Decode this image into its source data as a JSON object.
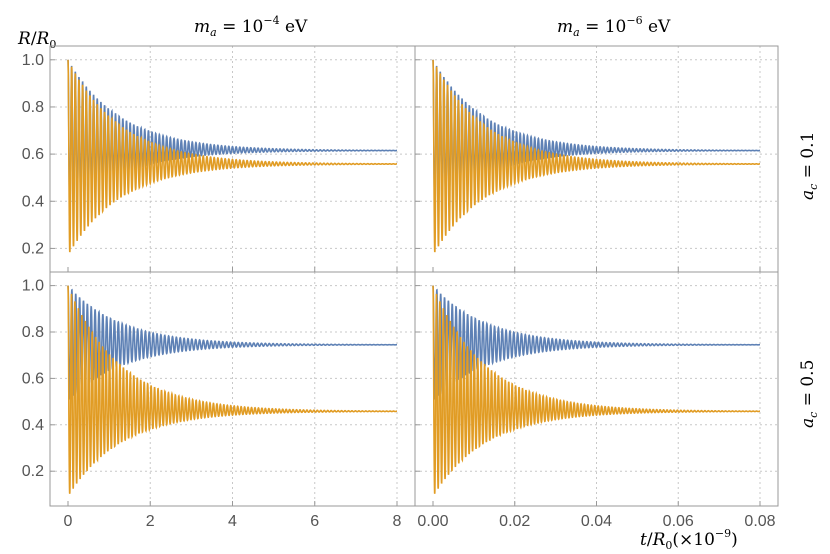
{
  "figure": {
    "y_axis_label": {
      "base": "R",
      "slash": "/",
      "denom": "R",
      "denom_sub": "0"
    },
    "x_axis_label": {
      "num": "t",
      "slash": "/",
      "denom": "R",
      "denom_sub": "0",
      "factor_open": "(×10",
      "factor_exp": "−9",
      "factor_close": ")"
    },
    "column_titles": [
      {
        "var": "m",
        "sub": "a",
        "eq": " = 10",
        "exp": "−4",
        "unit": " eV"
      },
      {
        "var": "m",
        "sub": "a",
        "eq": " = 10",
        "exp": "−6",
        "unit": " eV"
      }
    ],
    "row_titles": [
      {
        "var": "a",
        "sub": "c",
        "eq": " = 0.1"
      },
      {
        "var": "a",
        "sub": "c",
        "eq": " = 0.5"
      }
    ],
    "colors": {
      "series_blue": "#5e81b5",
      "series_orange": "#e19c24",
      "frame": "#999999",
      "grid": "#c8c8c8",
      "tick_text": "#555555"
    }
  },
  "chart_data": [
    {
      "type": "line",
      "panel": "top-left",
      "title": "m_a = 10^-4 eV",
      "row_label": "a_c = 0.1",
      "xlim": [
        0,
        8
      ],
      "ylim": [
        0.1,
        1.05
      ],
      "x_ticks": [
        0,
        2,
        4,
        6,
        8
      ],
      "y_ticks": [
        0.2,
        0.4,
        0.6,
        0.8,
        1.0
      ],
      "grid": true,
      "series": [
        {
          "color": "#5e81b5",
          "start": 1.0,
          "first_min": 0.35,
          "final": 0.615,
          "t_end": 8,
          "oscillations": 90
        },
        {
          "color": "#e19c24",
          "start": 1.0,
          "first_min": 0.17,
          "final": 0.558,
          "t_end": 8,
          "oscillations": 90
        }
      ]
    },
    {
      "type": "line",
      "panel": "top-right",
      "title": "m_a = 10^-6 eV",
      "row_label": "a_c = 0.1",
      "xlim": [
        0,
        0.08
      ],
      "ylim": [
        0.1,
        1.05
      ],
      "x_ticks": [
        0.0,
        0.02,
        0.04,
        0.06,
        0.08
      ],
      "y_ticks": [
        0.2,
        0.4,
        0.6,
        0.8,
        1.0
      ],
      "grid": true,
      "series": [
        {
          "color": "#5e81b5",
          "start": 1.0,
          "first_min": 0.35,
          "final": 0.615,
          "t_end": 0.08,
          "oscillations": 90
        },
        {
          "color": "#e19c24",
          "start": 1.0,
          "first_min": 0.17,
          "final": 0.558,
          "t_end": 0.08,
          "oscillations": 90
        }
      ]
    },
    {
      "type": "line",
      "panel": "bottom-left",
      "title": "m_a = 10^-4 eV",
      "row_label": "a_c = 0.5",
      "xlim": [
        0,
        8
      ],
      "ylim": [
        0.05,
        1.05
      ],
      "x_ticks": [
        0,
        2,
        4,
        6,
        8
      ],
      "y_ticks": [
        0.2,
        0.4,
        0.6,
        0.8,
        1.0
      ],
      "grid": true,
      "series": [
        {
          "color": "#5e81b5",
          "start": 1.0,
          "first_min": 0.5,
          "final": 0.745,
          "t_end": 8,
          "oscillations": 85
        },
        {
          "color": "#e19c24",
          "start": 1.0,
          "first_min": 0.09,
          "final": 0.458,
          "t_end": 8,
          "oscillations": 95
        }
      ]
    },
    {
      "type": "line",
      "panel": "bottom-right",
      "title": "m_a = 10^-6 eV",
      "row_label": "a_c = 0.5",
      "xlim": [
        0,
        0.08
      ],
      "ylim": [
        0.05,
        1.05
      ],
      "x_ticks": [
        0.0,
        0.02,
        0.04,
        0.06,
        0.08
      ],
      "y_ticks": [
        0.2,
        0.4,
        0.6,
        0.8,
        1.0
      ],
      "grid": true,
      "series": [
        {
          "color": "#5e81b5",
          "start": 1.0,
          "first_min": 0.5,
          "final": 0.745,
          "t_end": 0.08,
          "oscillations": 85
        },
        {
          "color": "#e19c24",
          "start": 1.0,
          "first_min": 0.09,
          "final": 0.458,
          "t_end": 0.08,
          "oscillations": 95
        }
      ]
    }
  ]
}
